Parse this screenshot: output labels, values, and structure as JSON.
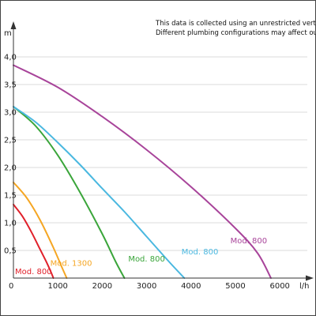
{
  "chart_data": {
    "type": "line",
    "title": "",
    "xlabel": "l/h",
    "ylabel": "m",
    "xlim": [
      0,
      6500
    ],
    "ylim": [
      0,
      4.5
    ],
    "x_ticks": [
      0,
      1000,
      2000,
      3000,
      4000,
      5000,
      6000
    ],
    "x_tick_labels": [
      "0",
      "1000",
      "2000",
      "3000",
      "4000",
      "5000",
      "6000"
    ],
    "y_ticks": [
      0.5,
      1.0,
      1.5,
      2.0,
      2.5,
      3.0,
      3.5,
      4.0
    ],
    "y_tick_labels": [
      "0,5",
      "1,0",
      "1,5",
      "2,0",
      "2,5",
      "3,0",
      "3,5",
      "4,0"
    ],
    "grid": {
      "horizontal": true,
      "vertical": false
    },
    "note_lines": [
      "This data is collected using an unrestricted vertical pipe.",
      "Different plumbing configurations may affect output."
    ],
    "series": [
      {
        "name": "Mod. 800",
        "color": "#e0202a",
        "x": [
          0,
          200,
          400,
          600,
          750,
          850,
          900
        ],
        "y": [
          1.33,
          1.12,
          0.84,
          0.52,
          0.28,
          0.1,
          0.0
        ]
      },
      {
        "name": "Mod. 1300",
        "color": "#f5a623",
        "x": [
          0,
          300,
          600,
          900,
          1100,
          1200
        ],
        "y": [
          1.73,
          1.45,
          1.05,
          0.55,
          0.18,
          0.0
        ]
      },
      {
        "name": "Mod. 800",
        "color": "#3aa53a",
        "x": [
          0,
          500,
          1000,
          1500,
          2000,
          2300,
          2500
        ],
        "y": [
          3.1,
          2.75,
          2.22,
          1.55,
          0.8,
          0.3,
          0.0
        ]
      },
      {
        "name": "Mod. 800",
        "color": "#4ab8e0",
        "x": [
          0,
          500,
          1000,
          1500,
          2000,
          2500,
          3000,
          3500,
          3850
        ],
        "y": [
          3.1,
          2.82,
          2.45,
          2.05,
          1.62,
          1.2,
          0.75,
          0.3,
          0.0
        ]
      },
      {
        "name": "Mod. 800",
        "color": "#a8449a",
        "x": [
          0,
          1000,
          2000,
          3000,
          4000,
          5000,
          5500,
          5800
        ],
        "y": [
          3.85,
          3.45,
          2.92,
          2.32,
          1.65,
          0.9,
          0.45,
          0.0
        ]
      }
    ]
  }
}
